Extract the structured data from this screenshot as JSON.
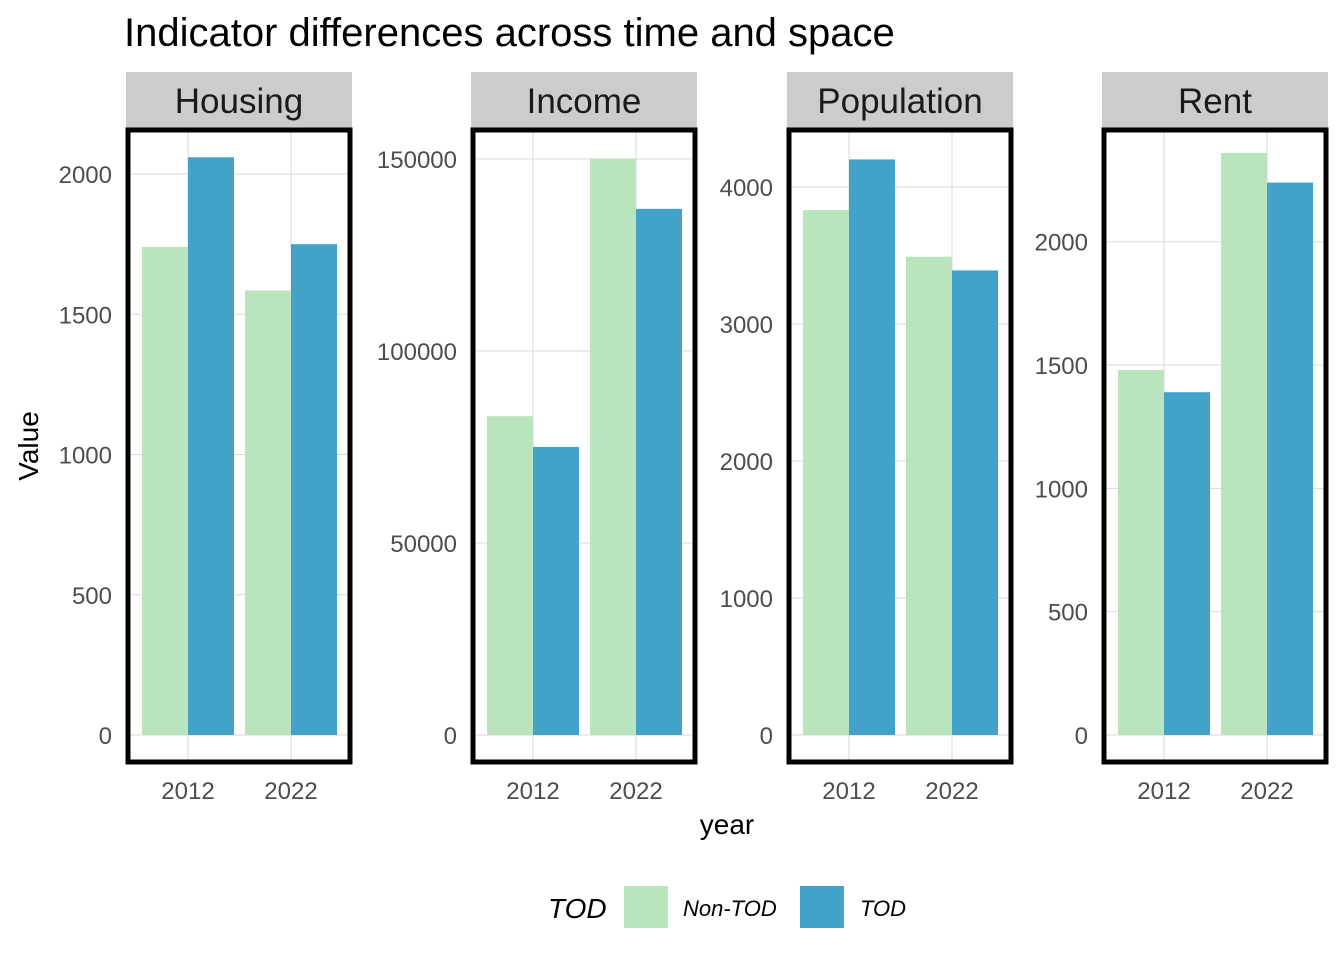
{
  "chart_data": {
    "type": "bar",
    "title": "Indicator differences across time and space",
    "xlabel": "year",
    "ylabel": "Value",
    "categories": [
      "2012",
      "2022"
    ],
    "grid": true,
    "legend": {
      "title": "TOD",
      "placement": "bottom",
      "items": [
        {
          "label": "Non-TOD",
          "color": "#bae4bc"
        },
        {
          "label": "TOD",
          "color": "#43a2ca"
        }
      ]
    },
    "panels": [
      {
        "name": "Housing",
        "ylim": [
          0,
          2150
        ],
        "yticks": [
          0,
          500,
          1000,
          1500,
          2000
        ],
        "series": [
          {
            "name": "Non-TOD",
            "values": [
              1740,
              1585
            ]
          },
          {
            "name": "TOD",
            "values": [
              2060,
              1750
            ]
          }
        ]
      },
      {
        "name": "Income",
        "ylim": [
          0,
          157000
        ],
        "yticks": [
          0,
          50000,
          100000,
          150000
        ],
        "series": [
          {
            "name": "Non-TOD",
            "values": [
              83000,
              150000
            ]
          },
          {
            "name": "TOD",
            "values": [
              75000,
              137000
            ]
          }
        ]
      },
      {
        "name": "Population",
        "ylim": [
          0,
          4400
        ],
        "yticks": [
          0,
          1000,
          2000,
          3000,
          4000
        ],
        "series": [
          {
            "name": "Non-TOD",
            "values": [
              3830,
              3490
            ]
          },
          {
            "name": "TOD",
            "values": [
              4200,
              3390
            ]
          }
        ]
      },
      {
        "name": "Rent",
        "ylim": [
          0,
          2445
        ],
        "yticks": [
          0,
          500,
          1000,
          1500,
          2000
        ],
        "series": [
          {
            "name": "Non-TOD",
            "values": [
              1480,
              2360
            ]
          },
          {
            "name": "TOD",
            "values": [
              1390,
              2240
            ]
          }
        ]
      }
    ]
  }
}
